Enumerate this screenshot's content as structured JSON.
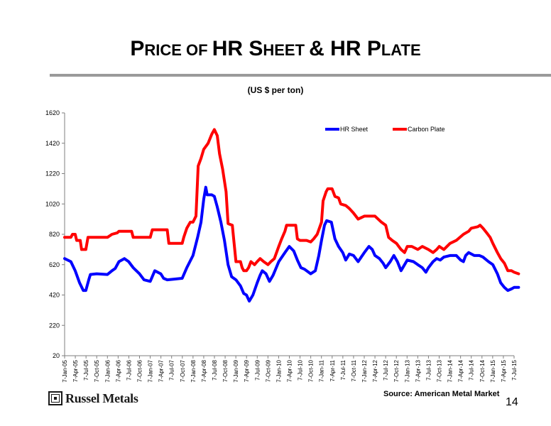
{
  "slide": {
    "title_parts": [
      {
        "text": "P",
        "big": true
      },
      {
        "text": "RICE ",
        "big": false
      },
      {
        "text": "OF ",
        "big": false
      },
      {
        "text": "HR S",
        "big": true
      },
      {
        "text": "HEET ",
        "big": false
      },
      {
        "text": "& HR P",
        "big": true
      },
      {
        "text": "LATE",
        "big": false
      }
    ],
    "subtitle": "(US $ per ton)",
    "source": "Source: American Metal Market",
    "logo_text": "Russel Metals",
    "page_number": "14"
  },
  "colors": {
    "hr_sheet": "#0000FF",
    "carbon_plate": "#FF0000",
    "axis": "#7f7f7f"
  },
  "chart_data": {
    "type": "line",
    "title": "(US $ per ton)",
    "ylim": [
      20,
      1620
    ],
    "yticks": [
      20,
      220,
      420,
      620,
      820,
      1020,
      1220,
      1420,
      1620
    ],
    "grid": false,
    "legend": "top-right",
    "x_tick_labels": [
      "7-Jan-05",
      "7-Apr-05",
      "7-Jul-05",
      "7-Oct-05",
      "7-Jan-06",
      "7-Apr-06",
      "7-Jul-06",
      "7-Oct-06",
      "7-Jan-07",
      "7-Apr-07",
      "7-Jul-07",
      "7-Oct-07",
      "7-Jan-08",
      "7-Apr-08",
      "7-Jul-08",
      "7-Oct-08",
      "7-Jan-09",
      "7-Apr-09",
      "7-Jul-09",
      "7-Oct-09",
      "7-Jan-10",
      "7-Apr-10",
      "7-Jul-10",
      "7-Oct-10",
      "7-Jan-11",
      "7-Apr-11",
      "7-Jul-11",
      "7-Oct-11",
      "7-Jan-12",
      "7-Apr-12",
      "7-Jul-12",
      "7-Oct-12",
      "7-Jan-13",
      "7-Apr-13",
      "7-Jul-13",
      "7-Oct-13",
      "7-Jan-14",
      "7-Apr-14",
      "7-Jul-14",
      "7-Oct-14",
      "7-Jan-15",
      "7-Apr-15",
      "7-Jul-15"
    ],
    "series": [
      {
        "name": "HR Sheet",
        "color": "#0000FF",
        "points": [
          [
            "2005-01-07",
            660
          ],
          [
            "2005-03-01",
            640
          ],
          [
            "2005-04-07",
            580
          ],
          [
            "2005-05-15",
            500
          ],
          [
            "2005-06-15",
            450
          ],
          [
            "2005-07-07",
            450
          ],
          [
            "2005-08-01",
            520
          ],
          [
            "2005-08-15",
            555
          ],
          [
            "2005-10-07",
            560
          ],
          [
            "2006-01-07",
            555
          ],
          [
            "2006-02-15",
            580
          ],
          [
            "2006-03-15",
            595
          ],
          [
            "2006-04-15",
            640
          ],
          [
            "2006-06-01",
            660
          ],
          [
            "2006-07-07",
            640
          ],
          [
            "2006-08-15",
            600
          ],
          [
            "2006-10-07",
            560
          ],
          [
            "2006-11-15",
            520
          ],
          [
            "2007-01-07",
            510
          ],
          [
            "2007-02-15",
            580
          ],
          [
            "2007-04-07",
            560
          ],
          [
            "2007-05-01",
            530
          ],
          [
            "2007-06-01",
            520
          ],
          [
            "2007-08-01",
            525
          ],
          [
            "2007-10-07",
            530
          ],
          [
            "2007-11-15",
            600
          ],
          [
            "2008-01-07",
            680
          ],
          [
            "2008-02-15",
            800
          ],
          [
            "2008-03-15",
            900
          ],
          [
            "2008-04-07",
            1050
          ],
          [
            "2008-04-25",
            1130
          ],
          [
            "2008-05-07",
            1080
          ],
          [
            "2008-06-15",
            1080
          ],
          [
            "2008-07-07",
            1070
          ],
          [
            "2008-08-01",
            1000
          ],
          [
            "2008-09-01",
            900
          ],
          [
            "2008-10-01",
            780
          ],
          [
            "2008-11-01",
            620
          ],
          [
            "2008-12-01",
            540
          ],
          [
            "2009-01-07",
            520
          ],
          [
            "2009-02-15",
            480
          ],
          [
            "2009-03-15",
            430
          ],
          [
            "2009-04-07",
            420
          ],
          [
            "2009-05-01",
            380
          ],
          [
            "2009-06-01",
            420
          ],
          [
            "2009-07-07",
            500
          ],
          [
            "2009-08-01",
            550
          ],
          [
            "2009-08-20",
            580
          ],
          [
            "2009-09-20",
            560
          ],
          [
            "2009-10-20",
            510
          ],
          [
            "2009-11-20",
            550
          ],
          [
            "2010-01-07",
            640
          ],
          [
            "2010-03-01",
            700
          ],
          [
            "2010-04-07",
            740
          ],
          [
            "2010-05-15",
            710
          ],
          [
            "2010-06-15",
            650
          ],
          [
            "2010-07-15",
            600
          ],
          [
            "2010-08-15",
            590
          ],
          [
            "2010-10-07",
            560
          ],
          [
            "2010-11-15",
            580
          ],
          [
            "2010-12-15",
            680
          ],
          [
            "2011-01-07",
            780
          ],
          [
            "2011-02-01",
            880
          ],
          [
            "2011-02-20",
            910
          ],
          [
            "2011-04-01",
            900
          ],
          [
            "2011-05-01",
            790
          ],
          [
            "2011-06-01",
            740
          ],
          [
            "2011-07-07",
            700
          ],
          [
            "2011-08-01",
            650
          ],
          [
            "2011-09-01",
            690
          ],
          [
            "2011-10-07",
            680
          ],
          [
            "2011-11-15",
            640
          ],
          [
            "2012-01-07",
            700
          ],
          [
            "2012-02-15",
            740
          ],
          [
            "2012-03-15",
            720
          ],
          [
            "2012-04-07",
            680
          ],
          [
            "2012-05-15",
            660
          ],
          [
            "2012-06-15",
            630
          ],
          [
            "2012-07-07",
            600
          ],
          [
            "2012-08-15",
            640
          ],
          [
            "2012-09-15",
            680
          ],
          [
            "2012-10-15",
            640
          ],
          [
            "2012-11-15",
            580
          ],
          [
            "2013-01-07",
            650
          ],
          [
            "2013-03-01",
            640
          ],
          [
            "2013-04-07",
            620
          ],
          [
            "2013-05-15",
            600
          ],
          [
            "2013-06-15",
            570
          ],
          [
            "2013-07-07",
            600
          ],
          [
            "2013-08-15",
            640
          ],
          [
            "2013-09-15",
            660
          ],
          [
            "2013-10-15",
            650
          ],
          [
            "2013-11-15",
            670
          ],
          [
            "2014-01-07",
            680
          ],
          [
            "2014-03-01",
            680
          ],
          [
            "2014-04-07",
            650
          ],
          [
            "2014-05-01",
            640
          ],
          [
            "2014-05-20",
            680
          ],
          [
            "2014-06-15",
            700
          ],
          [
            "2014-08-01",
            680
          ],
          [
            "2014-09-15",
            680
          ],
          [
            "2014-10-15",
            670
          ],
          [
            "2014-12-01",
            640
          ],
          [
            "2015-01-07",
            620
          ],
          [
            "2015-02-15",
            560
          ],
          [
            "2015-03-15",
            500
          ],
          [
            "2015-04-15",
            470
          ],
          [
            "2015-05-15",
            450
          ],
          [
            "2015-06-15",
            460
          ],
          [
            "2015-07-07",
            470
          ],
          [
            "2015-08-15",
            470
          ]
        ]
      },
      {
        "name": "Carbon Plate",
        "color": "#FF0000",
        "points": [
          [
            "2005-01-07",
            800
          ],
          [
            "2005-03-01",
            800
          ],
          [
            "2005-03-15",
            820
          ],
          [
            "2005-04-07",
            820
          ],
          [
            "2005-04-20",
            780
          ],
          [
            "2005-05-20",
            780
          ],
          [
            "2005-06-01",
            720
          ],
          [
            "2005-07-07",
            720
          ],
          [
            "2005-07-25",
            800
          ],
          [
            "2005-10-07",
            800
          ],
          [
            "2006-01-07",
            800
          ],
          [
            "2006-02-15",
            820
          ],
          [
            "2006-04-01",
            830
          ],
          [
            "2006-04-15",
            840
          ],
          [
            "2006-06-15",
            840
          ],
          [
            "2006-08-01",
            840
          ],
          [
            "2006-08-15",
            800
          ],
          [
            "2006-10-07",
            800
          ],
          [
            "2007-01-07",
            800
          ],
          [
            "2007-01-25",
            850
          ],
          [
            "2007-04-07",
            850
          ],
          [
            "2007-06-01",
            850
          ],
          [
            "2007-06-15",
            760
          ],
          [
            "2007-10-07",
            760
          ],
          [
            "2007-10-20",
            800
          ],
          [
            "2007-11-15",
            860
          ],
          [
            "2007-12-15",
            900
          ],
          [
            "2008-01-07",
            900
          ],
          [
            "2008-02-01",
            940
          ],
          [
            "2008-02-20",
            1270
          ],
          [
            "2008-03-15",
            1320
          ],
          [
            "2008-04-07",
            1380
          ],
          [
            "2008-05-15",
            1420
          ],
          [
            "2008-06-15",
            1480
          ],
          [
            "2008-07-07",
            1510
          ],
          [
            "2008-08-01",
            1470
          ],
          [
            "2008-08-20",
            1350
          ],
          [
            "2008-09-15",
            1250
          ],
          [
            "2008-10-15",
            1100
          ],
          [
            "2008-11-01",
            890
          ],
          [
            "2008-12-07",
            880
          ],
          [
            "2008-12-20",
            780
          ],
          [
            "2009-01-07",
            640
          ],
          [
            "2009-02-15",
            640
          ],
          [
            "2009-03-01",
            600
          ],
          [
            "2009-03-15",
            580
          ],
          [
            "2009-04-07",
            580
          ],
          [
            "2009-04-25",
            600
          ],
          [
            "2009-05-15",
            640
          ],
          [
            "2009-06-15",
            620
          ],
          [
            "2009-07-07",
            640
          ],
          [
            "2009-08-01",
            660
          ],
          [
            "2009-09-01",
            640
          ],
          [
            "2009-10-07",
            620
          ],
          [
            "2009-11-01",
            640
          ],
          [
            "2009-12-01",
            660
          ],
          [
            "2010-01-07",
            740
          ],
          [
            "2010-02-01",
            790
          ],
          [
            "2010-03-01",
            840
          ],
          [
            "2010-03-15",
            880
          ],
          [
            "2010-06-01",
            880
          ],
          [
            "2010-06-15",
            790
          ],
          [
            "2010-07-07",
            780
          ],
          [
            "2010-09-01",
            780
          ],
          [
            "2010-10-07",
            770
          ],
          [
            "2010-11-01",
            790
          ],
          [
            "2010-12-01",
            820
          ],
          [
            "2011-01-07",
            900
          ],
          [
            "2011-01-20",
            1040
          ],
          [
            "2011-02-15",
            1100
          ],
          [
            "2011-03-01",
            1120
          ],
          [
            "2011-04-07",
            1120
          ],
          [
            "2011-05-01",
            1070
          ],
          [
            "2011-06-01",
            1060
          ],
          [
            "2011-06-20",
            1020
          ],
          [
            "2011-08-01",
            1010
          ],
          [
            "2011-09-01",
            990
          ],
          [
            "2011-10-07",
            960
          ],
          [
            "2011-11-15",
            920
          ],
          [
            "2012-01-07",
            940
          ],
          [
            "2012-02-01",
            940
          ],
          [
            "2012-04-07",
            940
          ],
          [
            "2012-06-01",
            900
          ],
          [
            "2012-07-07",
            880
          ],
          [
            "2012-08-01",
            800
          ],
          [
            "2012-09-01",
            780
          ],
          [
            "2012-10-07",
            760
          ],
          [
            "2012-11-15",
            720
          ],
          [
            "2012-12-15",
            700
          ],
          [
            "2013-01-07",
            740
          ],
          [
            "2013-02-15",
            740
          ],
          [
            "2013-04-07",
            720
          ],
          [
            "2013-05-15",
            740
          ],
          [
            "2013-07-07",
            720
          ],
          [
            "2013-08-15",
            700
          ],
          [
            "2013-09-15",
            720
          ],
          [
            "2013-10-07",
            740
          ],
          [
            "2013-11-15",
            720
          ],
          [
            "2014-01-07",
            760
          ],
          [
            "2014-03-01",
            780
          ],
          [
            "2014-05-01",
            820
          ],
          [
            "2014-06-15",
            840
          ],
          [
            "2014-07-07",
            860
          ],
          [
            "2014-09-01",
            870
          ],
          [
            "2014-09-20",
            880
          ],
          [
            "2014-10-15",
            860
          ],
          [
            "2014-11-15",
            830
          ],
          [
            "2014-12-15",
            800
          ],
          [
            "2015-01-07",
            760
          ],
          [
            "2015-02-15",
            700
          ],
          [
            "2015-03-15",
            660
          ],
          [
            "2015-04-15",
            630
          ],
          [
            "2015-05-15",
            580
          ],
          [
            "2015-06-15",
            580
          ],
          [
            "2015-07-07",
            570
          ],
          [
            "2015-08-15",
            560
          ]
        ]
      }
    ]
  }
}
